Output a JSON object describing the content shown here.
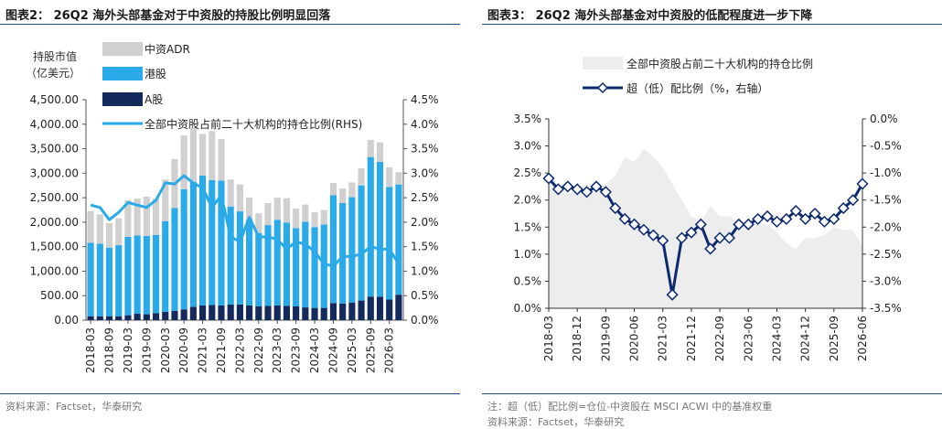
{
  "left": {
    "title": "图表2：  26Q2 海外头部基金对于中资股的持股比例明显回落",
    "source": "资料来源：Factset，华泰研究",
    "ylabel_line1": "持股市值",
    "ylabel_line2": "（亿美元）"
  },
  "right": {
    "title": "图表3：  26Q2 海外头部基金对中资股的低配程度进一步下降",
    "note": "注：超（低）配比例=仓位-中资股在 MSCI ACWI 中的基准权重",
    "source": "资料来源：Factset，华泰研究"
  },
  "colors": {
    "adr": "#d0d0d0",
    "hk": "#2aaae8",
    "ashare": "#152a5c",
    "line": "#2aaae8",
    "area": "#ededed",
    "ow_line": "#0d2a6e"
  },
  "chart_data": [
    {
      "type": "bar",
      "stacked": true,
      "x": [
        "2018-03",
        "2018-06",
        "2018-09",
        "2018-12",
        "2019-03",
        "2019-06",
        "2019-09",
        "2019-12",
        "2020-03",
        "2020-06",
        "2020-09",
        "2020-12",
        "2021-03",
        "2021-06",
        "2021-09",
        "2021-12",
        "2022-03",
        "2022-06",
        "2022-09",
        "2022-12",
        "2023-03",
        "2023-06",
        "2023-09",
        "2023-12",
        "2024-03",
        "2024-06",
        "2024-09",
        "2024-12",
        "2025-03",
        "2025-06",
        "2025-09",
        "2025-12",
        "2026-03",
        "2026-06"
      ],
      "xticks": [
        "2018-03",
        "2018-09",
        "2019-03",
        "2019-09",
        "2020-03",
        "2020-09",
        "2021-03",
        "2021-09",
        "2022-03",
        "2022-09",
        "2023-03",
        "2023-09",
        "2024-03",
        "2024-09",
        "2025-03",
        "2025-09",
        "2026-03"
      ],
      "series": [
        {
          "name": "A股",
          "values": [
            80,
            80,
            80,
            80,
            100,
            130,
            120,
            140,
            170,
            190,
            220,
            270,
            300,
            310,
            300,
            320,
            320,
            300,
            280,
            290,
            300,
            290,
            280,
            260,
            250,
            250,
            350,
            340,
            360,
            400,
            480,
            480,
            420,
            520
          ]
        },
        {
          "name": "港股",
          "values": [
            1500,
            1480,
            1400,
            1450,
            1600,
            1600,
            1600,
            1600,
            1850,
            2100,
            2450,
            2550,
            2650,
            2550,
            2550,
            2000,
            1900,
            1750,
            1500,
            1650,
            1750,
            1700,
            1600,
            1750,
            1650,
            1700,
            2200,
            2050,
            2150,
            2350,
            2850,
            2750,
            2300,
            2250
          ]
        },
        {
          "name": "中资ADR",
          "values": [
            650,
            600,
            500,
            550,
            750,
            750,
            800,
            750,
            850,
            1000,
            1100,
            1100,
            850,
            1000,
            850,
            550,
            550,
            450,
            400,
            450,
            450,
            500,
            400,
            350,
            300,
            300,
            250,
            300,
            300,
            350,
            350,
            400,
            400,
            250
          ]
        }
      ],
      "line": {
        "name": "全部中资股占前二十大机构的持仓比例(RHS)",
        "values": [
          2.35,
          2.3,
          2.05,
          2.2,
          2.4,
          2.35,
          2.3,
          2.45,
          2.8,
          2.78,
          2.95,
          2.8,
          2.7,
          2.3,
          2.55,
          1.7,
          1.6,
          2.1,
          1.7,
          1.7,
          1.65,
          1.45,
          1.6,
          1.55,
          1.4,
          1.15,
          1.1,
          1.3,
          1.3,
          1.35,
          1.5,
          1.45,
          1.45,
          1.15
        ]
      },
      "yleft": {
        "min": 0,
        "max": 4500,
        "step": 500,
        "ticks": [
          "0.00",
          "500.00",
          "1,000.00",
          "1,500.00",
          "2,000.00",
          "2,500.00",
          "3,000.00",
          "3,500.00",
          "4,000.00",
          "4,500.00"
        ]
      },
      "yright": {
        "min": 0,
        "max": 4.5,
        "step": 0.5,
        "ticks": [
          "0.0%",
          "0.5%",
          "1.0%",
          "1.5%",
          "2.0%",
          "2.5%",
          "3.0%",
          "3.5%",
          "4.0%",
          "4.5%"
        ]
      },
      "legend": [
        "中资ADR",
        "港股",
        "A股",
        "全部中资股占前二十大机构的持仓比例(RHS)"
      ]
    },
    {
      "type": "area",
      "x": [
        "2018-03",
        "2018-06",
        "2018-09",
        "2018-12",
        "2019-03",
        "2019-06",
        "2019-09",
        "2019-12",
        "2020-03",
        "2020-06",
        "2020-09",
        "2020-12",
        "2021-03",
        "2021-06",
        "2021-09",
        "2021-12",
        "2022-03",
        "2022-06",
        "2022-09",
        "2022-12",
        "2023-03",
        "2023-06",
        "2023-09",
        "2023-12",
        "2024-03",
        "2024-06",
        "2024-09",
        "2024-12",
        "2025-03",
        "2025-06",
        "2025-09",
        "2025-12",
        "2026-03",
        "2026-06"
      ],
      "xticks": [
        "2018-03",
        "2018-12",
        "2019-09",
        "2020-06",
        "2021-03",
        "2021-12",
        "2022-09",
        "2023-06",
        "2024-03",
        "2024-12",
        "2025-09",
        "2026-06"
      ],
      "series": [
        {
          "name": "全部中资股占前二十大机构的持仓比例",
          "axis": "left",
          "values": [
            2.4,
            2.3,
            2.1,
            2.2,
            2.3,
            2.2,
            2.3,
            2.45,
            2.8,
            2.7,
            2.95,
            2.8,
            2.6,
            2.3,
            2.0,
            1.7,
            1.6,
            1.9,
            1.7,
            1.7,
            1.6,
            1.5,
            1.6,
            1.55,
            1.4,
            1.2,
            1.1,
            1.3,
            1.3,
            1.35,
            1.5,
            1.45,
            1.45,
            1.15
          ]
        },
        {
          "name": "超（低）配比例（%，右轴）",
          "axis": "right",
          "type": "line",
          "values": [
            -1.1,
            -1.3,
            -1.25,
            -1.3,
            -1.35,
            -1.25,
            -1.35,
            -1.65,
            -1.85,
            -1.95,
            -2.05,
            -2.15,
            -2.25,
            -3.25,
            -2.2,
            -2.1,
            -1.95,
            -2.4,
            -2.2,
            -2.2,
            -1.95,
            -1.95,
            -1.85,
            -1.8,
            -1.9,
            -1.85,
            -1.7,
            -1.85,
            -1.75,
            -1.9,
            -1.85,
            -1.65,
            -1.5,
            -1.2
          ]
        }
      ],
      "yleft": {
        "min": 0,
        "max": 3.5,
        "step": 0.5,
        "ticks": [
          "0.0%",
          "0.5%",
          "1.0%",
          "1.5%",
          "2.0%",
          "2.5%",
          "3.0%",
          "3.5%"
        ]
      },
      "yright": {
        "min": -3.5,
        "max": 0,
        "step": 0.5,
        "ticks": [
          "-3.5%",
          "-3.0%",
          "-2.5%",
          "-2.0%",
          "-1.5%",
          "-1.0%",
          "-0.5%",
          "0.0%"
        ]
      },
      "legend": [
        "全部中资股占前二十大机构的持仓比例",
        "超（低）配比例（%，右轴）"
      ]
    }
  ]
}
